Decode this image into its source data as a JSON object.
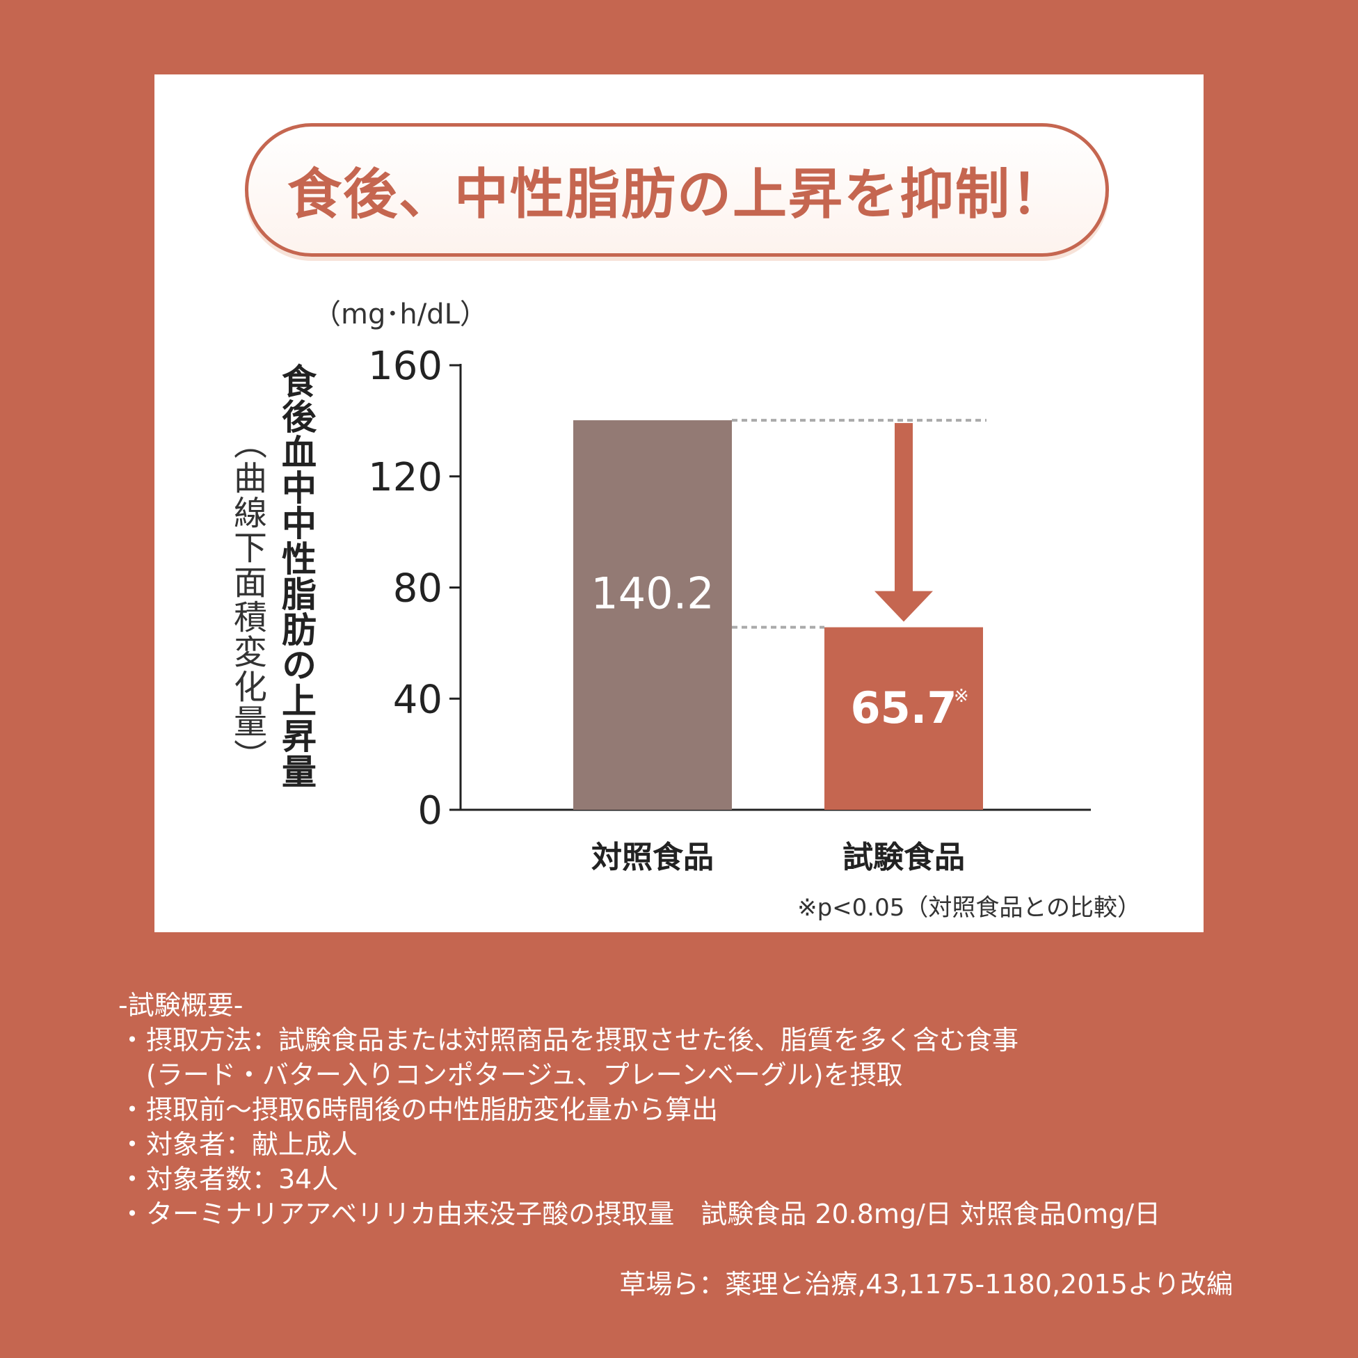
{
  "title": "食後、中性脂肪の上昇を抑制！",
  "unit": "（mg･h/dL）",
  "ylabel_main": "食後血中中性脂肪の上昇量",
  "ylabel_sub": "（曲線下面積変化量）",
  "footnote": "※p<0.05（対照食品との比較）",
  "colors": {
    "background": "#c56650",
    "control_bar": "#937a74",
    "test_bar": "#c56650",
    "panel": "#ffffff"
  },
  "chart_data": {
    "type": "bar",
    "categories": [
      "対照食品",
      "試験食品"
    ],
    "values": [
      140.2,
      65.7
    ],
    "value_labels": [
      "140.2",
      "65.7"
    ],
    "value_marks": [
      "",
      "※"
    ],
    "yticks": [
      "0",
      "40",
      "80",
      "120",
      "160"
    ],
    "ylim": [
      0,
      160
    ],
    "grid": false,
    "annotation": "arrow from control bar level down to test bar level"
  },
  "notes": {
    "heading": "-試験概要-",
    "items": [
      {
        "bullet": "・",
        "lines": [
          "摂取方法：試験食品または対照商品を摂取させた後、脂質を多く含む食事",
          "(ラード・バター入りコンポタージュ、プレーンベーグル)を摂取"
        ]
      },
      {
        "bullet": "・",
        "lines": [
          "摂取前～摂取6時間後の中性脂肪変化量から算出"
        ]
      },
      {
        "bullet": "・",
        "lines": [
          "対象者：献上成人"
        ]
      },
      {
        "bullet": "・",
        "lines": [
          "対象者数：34人"
        ]
      },
      {
        "bullet": "・",
        "lines": [
          "ターミナリアアベリリカ由来没子酸の摂取量　試験食品 20.8mg/日 対照食品0mg/日"
        ]
      }
    ]
  },
  "citation": "草場ら：薬理と治療,43,1175-1180,2015より改編"
}
